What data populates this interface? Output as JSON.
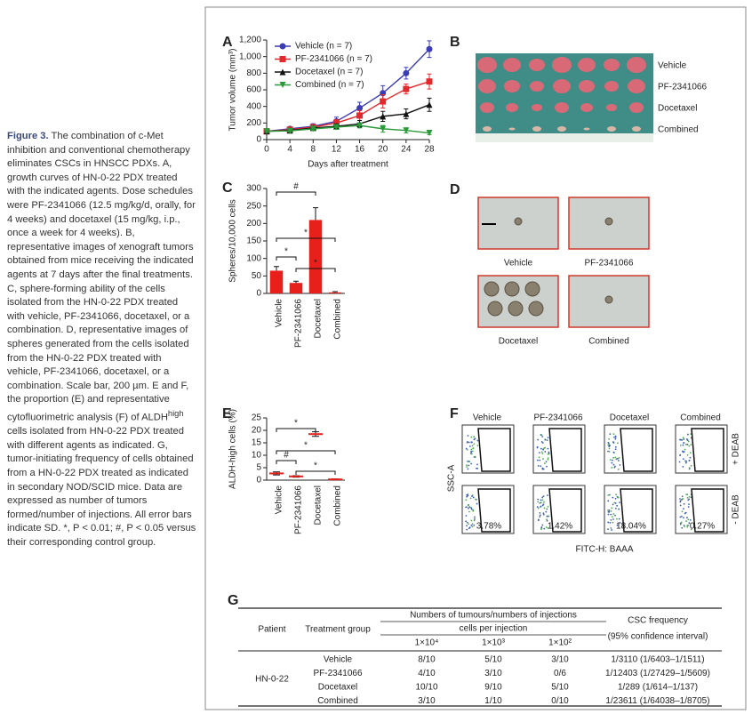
{
  "caption": {
    "label": "Figure 3.",
    "text_a": "The combination of c-Met inhibition and conventional chemotherapy eliminates CSCs in HNSCC PDXs. A, growth curves of HN-0-22 PDX treated with the indicated agents. Dose schedules were PF-2341066 (12.5 mg/kg/d, orally, for 4 weeks) and docetaxel (15 mg/kg, i.p., once a week for 4 weeks). B, representative images of xenograft tumors obtained from mice receiving the indicated agents at 7 days after the final treatments. C, sphere-forming ability of the cells isolated from the HN-0-22 PDX treated with vehicle, PF-2341066, docetaxel, or a combination. D, representative images of spheres generated from the cells isolated from the HN-0-22 PDX treated with vehicle, PF-2341066, docetaxel, or a combination. Scale bar, 200 µm. E and F, the proportion (E) and representative cytofluorimetric analysis (F) of ALDH",
    "sup": "high",
    "text_b": " cells isolated from HN-0-22 PDX treated with different agents as indicated. G, tumor-initiating frequency of cells obtained from a HN-0-22 PDX treated as indicated in secondary NOD/SCID mice. Data are expressed as number of tumors formed/number of injections. All error bars indicate SD. *, P < 0.01; #, P < 0.05 versus their corresponding control group."
  },
  "chart_data": [
    {
      "type": "line",
      "panel": "A",
      "x_label": "Days after treatment",
      "y_label": "Tumor volume (mm³)",
      "x": [
        0,
        4,
        8,
        12,
        16,
        20,
        24,
        28
      ],
      "series": [
        {
          "name": "Vehicle  (n = 7)",
          "color": "#3c3cb4",
          "marker": "circle",
          "values": [
            100,
            130,
            160,
            220,
            380,
            560,
            800,
            1090
          ],
          "errors": [
            15,
            20,
            30,
            50,
            70,
            90,
            70,
            100
          ]
        },
        {
          "name": "PF-2341066  (n = 7)",
          "color": "#e2292e",
          "marker": "square",
          "values": [
            100,
            120,
            150,
            200,
            290,
            460,
            610,
            700
          ],
          "errors": [
            15,
            20,
            25,
            40,
            60,
            80,
            60,
            90
          ]
        },
        {
          "name": "Docetaxel  (n = 7)",
          "color": "#111111",
          "marker": "triangle-up",
          "values": [
            100,
            110,
            140,
            160,
            190,
            280,
            310,
            420
          ],
          "errors": [
            15,
            15,
            20,
            30,
            40,
            60,
            60,
            80
          ]
        },
        {
          "name": "Combined  (n = 7)",
          "color": "#2a9a3a",
          "marker": "triangle-down",
          "values": [
            100,
            105,
            130,
            150,
            170,
            130,
            110,
            80
          ],
          "errors": [
            15,
            15,
            20,
            25,
            30,
            40,
            30,
            20
          ]
        }
      ],
      "xlim": [
        0,
        28
      ],
      "xticks": [
        0,
        4,
        8,
        12,
        16,
        20,
        24,
        28
      ],
      "ylim": [
        0,
        1200
      ],
      "yticks": [
        0,
        200,
        400,
        600,
        800,
        {
          "value": 1000,
          "label": "1,000"
        },
        {
          "value": 1200,
          "label": "1,200"
        }
      ]
    },
    {
      "type": "bar",
      "panel": "C",
      "y_label": "Spheres/10,000 cells",
      "color": "#e8201c",
      "categories": [
        "Vehicle",
        "PF-2341066",
        "Docetaxel",
        "Combined"
      ],
      "values": [
        65,
        30,
        210,
        3
      ],
      "errors": [
        12,
        5,
        35,
        2
      ],
      "ylim": [
        0,
        300
      ],
      "yticks": [
        0,
        50,
        100,
        150,
        200,
        250,
        300
      ],
      "annotations": [
        "#",
        "*",
        "*",
        "*"
      ]
    },
    {
      "type": "dot",
      "panel": "E",
      "y_label": "ALDH-high cells (%)",
      "color": "#e8201c",
      "categories": [
        "Vehicle",
        "PF-2341066",
        "Docetaxel",
        "Combined"
      ],
      "values": [
        2.7,
        1.5,
        18.5,
        0.3
      ],
      "errors": [
        0.6,
        0.3,
        0.9,
        0.2
      ],
      "ylim": [
        0,
        25
      ],
      "yticks": [
        0,
        5,
        10,
        15,
        20,
        25
      ],
      "annotations": [
        "*",
        "*",
        "#",
        "*"
      ]
    }
  ],
  "panel_b": {
    "panel": "B",
    "labels": [
      "Vehicle",
      "PF-2341066",
      "Docetaxel",
      "Combined"
    ]
  },
  "panel_d": {
    "panel": "D",
    "labels": [
      "Vehicle",
      "PF-2341066",
      "Docetaxel",
      "Combined"
    ]
  },
  "panel_f": {
    "panel": "F",
    "columns": [
      "Vehicle",
      "PF-2341066",
      "Docetaxel",
      "Combined"
    ],
    "rows": [
      "+ DEAB",
      "- DEAB"
    ],
    "percentages": [
      "3.78%",
      "1.42%",
      "18.04%",
      "0.27%"
    ],
    "y_label": "SSC-A",
    "x_label": "FITC-H: BAAA"
  },
  "table": {
    "panel": "G",
    "header": {
      "patient": "Patient",
      "group": "Treatment group",
      "numbers": "Numbers of tumours/numbers of injections",
      "cells": "cells per injection",
      "doses": [
        "1×10⁴",
        "1×10³",
        "1×10²"
      ],
      "csc": "CSC frequency",
      "ci": "(95% confidence interval)"
    },
    "patient": "HN-0-22",
    "rows": [
      [
        "Vehicle",
        "8/10",
        "5/10",
        "3/10",
        "1/3110 (1/6403–1/1511)"
      ],
      [
        "PF-2341066",
        "4/10",
        "3/10",
        "0/6",
        "1/12403 (1/27429–1/5609)"
      ],
      [
        "Docetaxel",
        "10/10",
        "9/10",
        "5/10",
        "1/289 (1/614–1/137)"
      ],
      [
        "Combined",
        "3/10",
        "1/10",
        "0/10",
        "1/23611 (1/64038–1/8705)"
      ]
    ]
  }
}
